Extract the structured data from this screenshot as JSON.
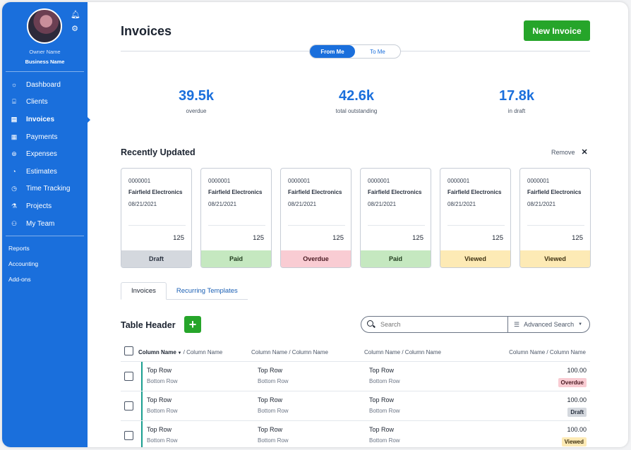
{
  "sidebar": {
    "owner_name": "Owner Name",
    "business_name": "Business Name",
    "items": [
      {
        "label": "Dashboard",
        "icon": "dashboard-icon",
        "glyph": "☼"
      },
      {
        "label": "Clients",
        "icon": "clients-icon",
        "glyph": "⌸"
      },
      {
        "label": "Invoices",
        "icon": "invoices-icon",
        "glyph": "▤"
      },
      {
        "label": "Payments",
        "icon": "payments-icon",
        "glyph": "▦"
      },
      {
        "label": "Expenses",
        "icon": "expenses-icon",
        "glyph": "⊛"
      },
      {
        "label": "Estimates",
        "icon": "estimates-icon",
        "glyph": "◔"
      },
      {
        "label": "Time Tracking",
        "icon": "clock-icon",
        "glyph": "◷"
      },
      {
        "label": "Projects",
        "icon": "projects-icon",
        "glyph": "⚗"
      },
      {
        "label": "My Team",
        "icon": "team-icon",
        "glyph": "⚇"
      }
    ],
    "sub_items": [
      "Reports",
      "Accounting",
      "Add-ons"
    ]
  },
  "header": {
    "title": "Invoices",
    "new_invoice_label": "New Invoice",
    "toggle": [
      "From Me",
      "To Me"
    ]
  },
  "stats": [
    {
      "value": "39.5k",
      "label": "overdue"
    },
    {
      "value": "42.6k",
      "label": "total outstanding"
    },
    {
      "value": "17.8k",
      "label": "in draft"
    }
  ],
  "recent": {
    "title": "Recently Updated",
    "remove_label": "Remove",
    "cards": [
      {
        "number": "0000001",
        "company": "Fairfield Electronics",
        "date": "08/21/2021",
        "amount": "125",
        "status": "Draft",
        "kind": "draft"
      },
      {
        "number": "0000001",
        "company": "Fairfield Electronics",
        "date": "08/21/2021",
        "amount": "125",
        "status": "Paid",
        "kind": "paid"
      },
      {
        "number": "0000001",
        "company": "Fairfield Electronics",
        "date": "08/21/2021",
        "amount": "125",
        "status": "Overdue",
        "kind": "overdue"
      },
      {
        "number": "0000001",
        "company": "Fairfield Electronics",
        "date": "08/21/2021",
        "amount": "125",
        "status": "Paid",
        "kind": "paid"
      },
      {
        "number": "0000001",
        "company": "Fairfield Electronics",
        "date": "08/21/2021",
        "amount": "125",
        "status": "Viewed",
        "kind": "viewed"
      },
      {
        "number": "0000001",
        "company": "Fairfield Electronics",
        "date": "08/21/2021",
        "amount": "125",
        "status": "Viewed",
        "kind": "viewed"
      }
    ]
  },
  "tabs": [
    "Invoices",
    "Recurring Templates"
  ],
  "table": {
    "title": "Table Header",
    "add_label": "+",
    "search_placeholder": "Search",
    "advanced_search_label": "Advanced Search",
    "columns": [
      {
        "primary": "Column Name",
        "secondary": " / Column Name"
      },
      "Column Name / Column Name",
      "Column Name / Column Name",
      "Column Name / Column Name"
    ],
    "rows": [
      {
        "c1t": "Top Row",
        "c1b": "Bottom Row",
        "c2t": "Top Row",
        "c2b": "Bottom Row",
        "c3t": "Top Row",
        "c3b": "Bottom Row",
        "amount": "100.00",
        "status": "Overdue",
        "kind": "overdue"
      },
      {
        "c1t": "Top Row",
        "c1b": "Bottom Row",
        "c2t": "Top Row",
        "c2b": "Bottom Row",
        "c3t": "Top Row",
        "c3b": "Bottom Row",
        "amount": "100.00",
        "status": "Draft",
        "kind": "draft"
      },
      {
        "c1t": "Top Row",
        "c1b": "Bottom Row",
        "c2t": "Top Row",
        "c2b": "Bottom Row",
        "c3t": "Top Row",
        "c3b": "Bottom Row",
        "amount": "100.00",
        "status": "Viewed",
        "kind": "viewed"
      }
    ]
  }
}
